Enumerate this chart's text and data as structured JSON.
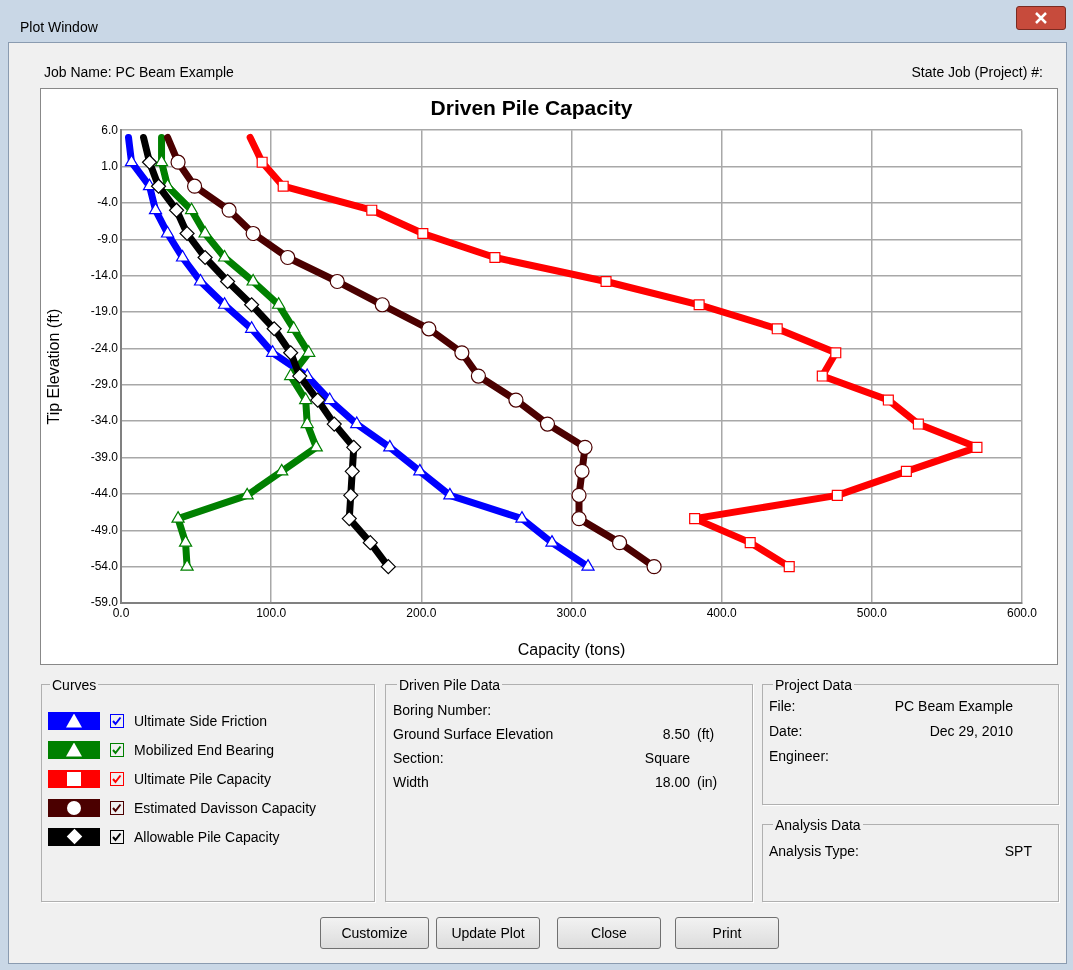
{
  "chart_data": {
    "type": "line",
    "title": "Driven Pile Capacity",
    "xlabel": "Capacity (tons)",
    "ylabel": "Tip Elevation (ft)",
    "xlim": [
      0,
      600
    ],
    "xticks": [
      {
        "value": 0,
        "label": "0.0"
      },
      {
        "value": 100,
        "label": "100.0"
      },
      {
        "value": 200,
        "label": "200.0"
      },
      {
        "value": 300,
        "label": "300.0"
      },
      {
        "value": 400,
        "label": "400.0"
      },
      {
        "value": 500,
        "label": "500.0"
      },
      {
        "value": 600,
        "label": "600.0"
      }
    ],
    "ylim": [
      -59,
      6
    ],
    "yticks": [
      {
        "value": 6,
        "label": "6.0"
      },
      {
        "value": 1,
        "label": "1.0"
      },
      {
        "value": -4,
        "label": "-4.0"
      },
      {
        "value": -9,
        "label": "-9.0"
      },
      {
        "value": -14,
        "label": "-14.0"
      },
      {
        "value": -19,
        "label": "-19.0"
      },
      {
        "value": -24,
        "label": "-24.0"
      },
      {
        "value": -29,
        "label": "-29.0"
      },
      {
        "value": -34,
        "label": "-34.0"
      },
      {
        "value": -39,
        "label": "-39.0"
      },
      {
        "value": -44,
        "label": "-44.0"
      },
      {
        "value": -49,
        "label": "-49.0"
      },
      {
        "value": -54,
        "label": "-54.0"
      },
      {
        "value": -59,
        "label": "-59.0"
      }
    ],
    "grid": true,
    "legend": "bottom",
    "series": [
      {
        "name": "Ultimate Side Friction",
        "color": "#0000ff",
        "marker": "triangle",
        "x": [
          5,
          7,
          19,
          23,
          31,
          41,
          53,
          69,
          87,
          101,
          124,
          139,
          157,
          179,
          199,
          219,
          267,
          287,
          311
        ],
        "values": [
          5.0,
          1.6,
          -1.7,
          -5.0,
          -8.2,
          -11.5,
          -14.8,
          -18.0,
          -21.3,
          -24.6,
          -27.8,
          -31.1,
          -34.4,
          -37.6,
          -40.9,
          -44.2,
          -47.4,
          -50.7,
          -54.0
        ]
      },
      {
        "name": "Mobilized End Bearing",
        "color": "#008000",
        "marker": "triangle",
        "x": [
          27,
          27,
          31,
          47,
          56,
          69,
          88,
          105,
          115,
          125,
          113,
          123,
          124,
          130,
          107,
          84,
          38,
          43,
          44
        ],
        "values": [
          5.0,
          1.6,
          -1.7,
          -5.0,
          -8.2,
          -11.5,
          -14.8,
          -18.0,
          -21.3,
          -24.6,
          -27.8,
          -31.1,
          -34.4,
          -37.6,
          -40.9,
          -44.2,
          -47.4,
          -50.7,
          -54.0
        ]
      },
      {
        "name": "Ultimate Pile Capacity",
        "color": "#ff0000",
        "marker": "square",
        "x": [
          86,
          94,
          108,
          167,
          201,
          249,
          323,
          385,
          437,
          476,
          467,
          511,
          531,
          570,
          523,
          477,
          382,
          419,
          445
        ],
        "values": [
          5.0,
          1.6,
          -1.7,
          -5.0,
          -8.2,
          -11.5,
          -14.8,
          -18.0,
          -21.3,
          -24.6,
          -27.8,
          -31.1,
          -34.4,
          -37.6,
          -40.9,
          -44.2,
          -47.4,
          -50.7,
          -54.0
        ]
      },
      {
        "name": "Estimated Davisson Capacity",
        "color": "#4b0000",
        "marker": "circle",
        "x": [
          31,
          38,
          49,
          72,
          88,
          111,
          144,
          174,
          205,
          227,
          238,
          263,
          284,
          309,
          307,
          305,
          305,
          332,
          355
        ],
        "values": [
          5.0,
          1.6,
          -1.7,
          -5.0,
          -8.2,
          -11.5,
          -14.8,
          -18.0,
          -21.3,
          -24.6,
          -27.8,
          -31.1,
          -34.4,
          -37.6,
          -40.9,
          -44.2,
          -47.4,
          -50.7,
          -54.0
        ]
      },
      {
        "name": "Allowable Pile Capacity",
        "color": "#000000",
        "marker": "diamond",
        "x": [
          15,
          19,
          25,
          37,
          44,
          56,
          71,
          87,
          102,
          113,
          119,
          131,
          142,
          155,
          154,
          153,
          152,
          166,
          178
        ],
        "values": [
          5.0,
          1.6,
          -1.7,
          -5.0,
          -8.2,
          -11.5,
          -14.8,
          -18.0,
          -21.3,
          -24.6,
          -27.8,
          -31.1,
          -34.4,
          -37.6,
          -40.9,
          -44.2,
          -47.4,
          -50.7,
          -54.0
        ]
      }
    ],
    "annotations": [
      "Plot Window",
      "Job Name:  PC Beam Example",
      "State Job (Project) #:",
      "Curves",
      "Driven Pile Data",
      "Boring Number:",
      "Ground Surface Elevation",
      "8.50",
      "(ft)",
      "Section:",
      "Square",
      "Width",
      "18.00",
      "(in)",
      "Project Data",
      "File:",
      "PC Beam Example",
      "Date:",
      "Dec 29, 2010",
      "Engineer:",
      "Analysis Data",
      "Analysis Type:",
      "SPT",
      "Customize",
      "Update Plot",
      "Close",
      "Print"
    ]
  }
}
